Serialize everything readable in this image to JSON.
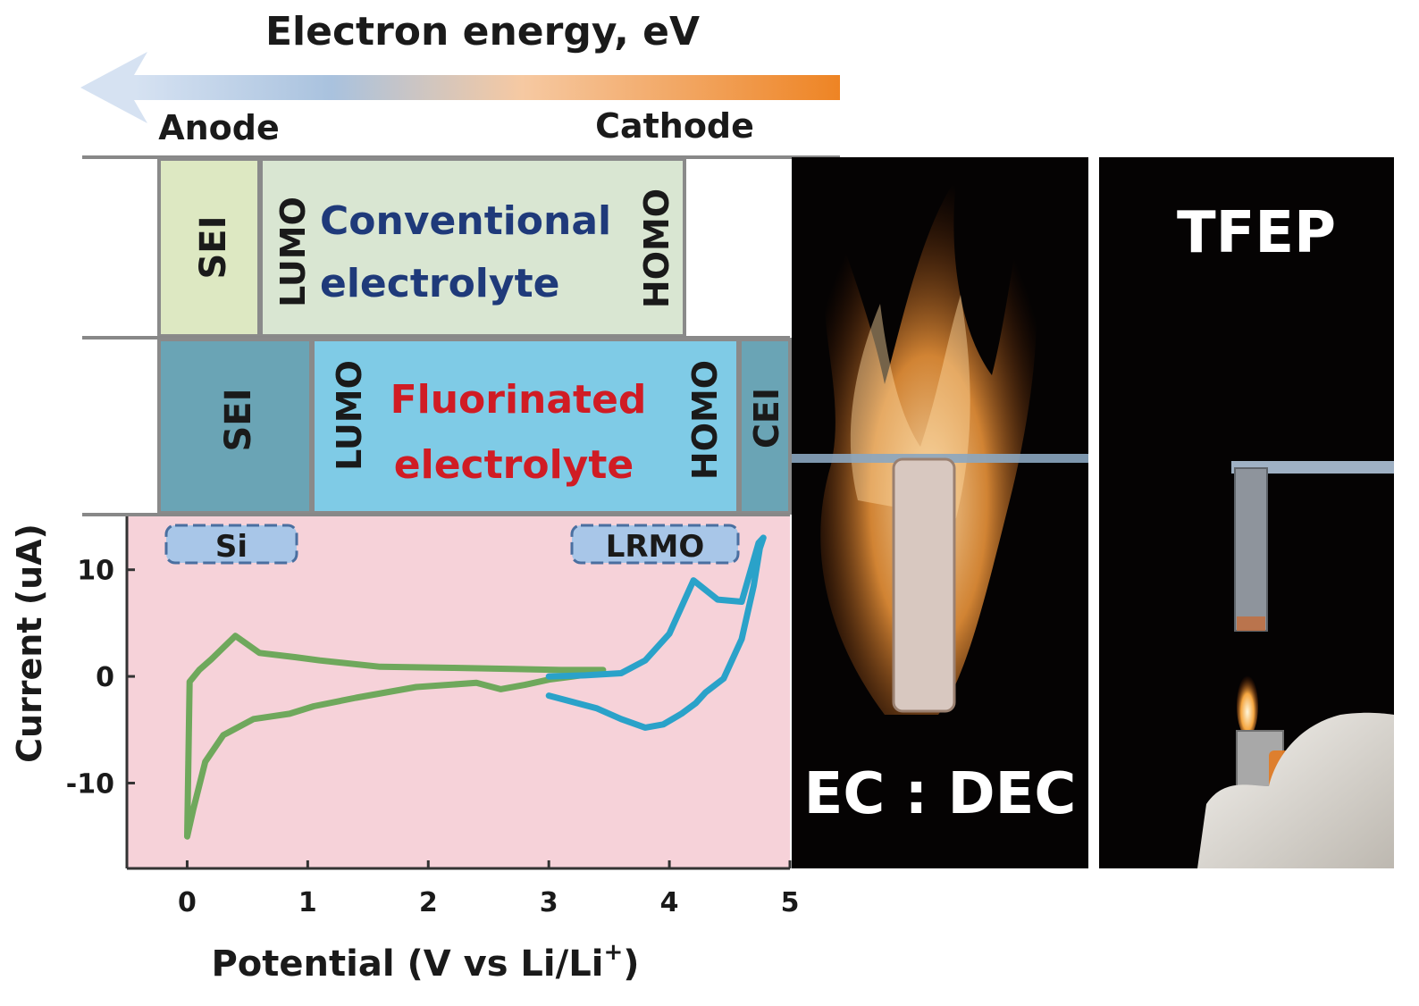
{
  "header": {
    "title": "Electron energy, eV",
    "anode_label": "Anode",
    "cathode_label": "Cathode"
  },
  "conventional_row": {
    "sei_label": "SEI",
    "lumo_label": "LUMO",
    "name_line1": "Conventional",
    "name_line2": "electrolyte",
    "homo_label": "HOMO"
  },
  "fluorinated_row": {
    "sei_label": "SEI",
    "lumo_label": "LUMO",
    "name_line1": "Fluorinated",
    "name_line2": "electrolyte",
    "homo_label": "HOMO",
    "cei_label": "CEI"
  },
  "colors": {
    "conventional_sei": "#dde8c2",
    "conventional_window": "#d9e6d2",
    "fluorinated_sei": "#6aa4b5",
    "fluorinated_window": "#7fcbe6",
    "plot_bg": "#f6d2d9",
    "si_curve": "#6fa85c",
    "lrmo_curve": "#2aa2c9",
    "arrow_left": "#d6e2f2",
    "arrow_right": "#ee8424"
  },
  "chart_data": {
    "type": "line",
    "xlabel": "Potential (V vs Li/Li",
    "xlabel_sup": "+",
    "xlabel_close": ")",
    "ylabel": "Current (uA)",
    "xlim": [
      -0.5,
      5
    ],
    "ylim": [
      -18,
      15
    ],
    "x_ticks": [
      0,
      1,
      2,
      3,
      4,
      5
    ],
    "y_ticks": [
      10,
      0,
      -10
    ],
    "annotations": [
      "Si",
      "LRMO"
    ],
    "series": [
      {
        "name": "Si",
        "x": [
          3.45,
          3.1,
          2.7,
          2.2,
          1.6,
          1.1,
          0.9,
          0.6,
          0.4,
          0.2,
          0.1,
          0.02,
          0.0,
          0.05,
          0.15,
          0.3,
          0.55,
          0.85,
          1.05,
          1.4,
          1.9,
          2.4,
          2.6,
          2.8,
          3.0,
          3.2,
          3.45
        ],
        "y": [
          0.6,
          0.6,
          0.7,
          0.8,
          0.9,
          1.5,
          1.8,
          2.2,
          3.8,
          1.6,
          0.6,
          -0.5,
          -15.0,
          -12.5,
          -8.0,
          -5.5,
          -4.0,
          -3.5,
          -2.8,
          -2.0,
          -1.0,
          -0.6,
          -1.2,
          -0.8,
          -0.3,
          0.0,
          0.4
        ]
      },
      {
        "name": "LRMO",
        "x": [
          3.0,
          3.4,
          3.6,
          3.8,
          3.95,
          4.1,
          4.22,
          4.3,
          4.45,
          4.6,
          4.7,
          4.75,
          4.78,
          4.74,
          4.6,
          4.4,
          4.2,
          4.0,
          3.8,
          3.6,
          3.3,
          3.0
        ],
        "y": [
          -1.8,
          -3.0,
          -4.0,
          -4.8,
          -4.5,
          -3.5,
          -2.5,
          -1.5,
          -0.2,
          3.5,
          8.5,
          12.0,
          13.0,
          12.5,
          7.0,
          7.2,
          9.0,
          4.0,
          1.5,
          0.3,
          0.1,
          0.0
        ]
      }
    ]
  },
  "photos": {
    "left_caption": "EC : DEC",
    "right_caption": "TFEP"
  }
}
